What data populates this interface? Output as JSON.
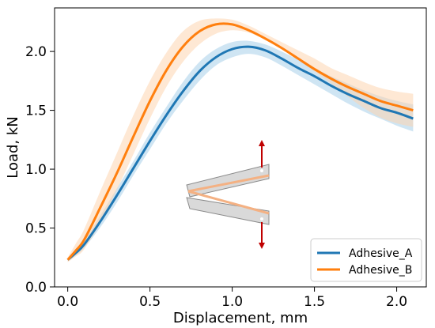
{
  "chart_data": {
    "type": "line",
    "title": "",
    "xlabel": "Displacement, mm",
    "ylabel": "Load, kN",
    "xlim": [
      -0.08,
      2.18
    ],
    "ylim": [
      0.0,
      2.37
    ],
    "xticks": [
      "0.0",
      "0.5",
      "1.0",
      "1.5",
      "2.0"
    ],
    "yticks": [
      "0.0",
      "0.5",
      "1.0",
      "1.5",
      "2.0"
    ],
    "grid": false,
    "legend_position": "bottom-right",
    "x": [
      0.0,
      0.05,
      0.1,
      0.2,
      0.3,
      0.4,
      0.5,
      0.6,
      0.7,
      0.8,
      0.9,
      1.0,
      1.1,
      1.2,
      1.3,
      1.4,
      1.5,
      1.6,
      1.7,
      1.8,
      1.9,
      2.0,
      2.1
    ],
    "series": [
      {
        "name": "Adhesive_A",
        "color": "#1f77b4",
        "band_color": "#a8d0ea",
        "values": [
          0.23,
          0.29,
          0.36,
          0.56,
          0.78,
          1.01,
          1.24,
          1.46,
          1.66,
          1.83,
          1.95,
          2.02,
          2.04,
          2.01,
          1.94,
          1.86,
          1.79,
          1.71,
          1.64,
          1.58,
          1.52,
          1.48,
          1.43
        ],
        "lower": [
          0.22,
          0.27,
          0.33,
          0.51,
          0.72,
          0.95,
          1.17,
          1.39,
          1.58,
          1.75,
          1.88,
          1.95,
          1.98,
          1.95,
          1.88,
          1.8,
          1.72,
          1.64,
          1.56,
          1.49,
          1.43,
          1.37,
          1.32
        ],
        "upper": [
          0.24,
          0.31,
          0.39,
          0.61,
          0.84,
          1.07,
          1.31,
          1.53,
          1.74,
          1.91,
          2.02,
          2.08,
          2.09,
          2.06,
          2.0,
          1.93,
          1.86,
          1.79,
          1.73,
          1.67,
          1.62,
          1.58,
          1.55
        ]
      },
      {
        "name": "Adhesive_B",
        "color": "#ff7f0e",
        "band_color": "#fdd5b1",
        "values": [
          0.23,
          0.31,
          0.4,
          0.68,
          0.97,
          1.28,
          1.58,
          1.84,
          2.04,
          2.17,
          2.23,
          2.23,
          2.18,
          2.11,
          2.03,
          1.94,
          1.85,
          1.77,
          1.7,
          1.64,
          1.58,
          1.54,
          1.5
        ],
        "lower": [
          0.21,
          0.26,
          0.32,
          0.55,
          0.83,
          1.13,
          1.43,
          1.7,
          1.91,
          2.06,
          2.15,
          2.18,
          2.16,
          2.1,
          2.02,
          1.93,
          1.83,
          1.73,
          1.62,
          1.52,
          1.44,
          1.39,
          1.36
        ],
        "upper": [
          0.25,
          0.37,
          0.49,
          0.82,
          1.14,
          1.46,
          1.75,
          1.99,
          2.17,
          2.26,
          2.28,
          2.27,
          2.22,
          2.15,
          2.08,
          2.01,
          1.94,
          1.86,
          1.8,
          1.74,
          1.69,
          1.66,
          1.64
        ]
      }
    ],
    "inset": {
      "description_free": true,
      "specimen_color": "#d9d9d9",
      "adhesive_color": "#f4b183",
      "arrow_color": "#c00000"
    }
  }
}
